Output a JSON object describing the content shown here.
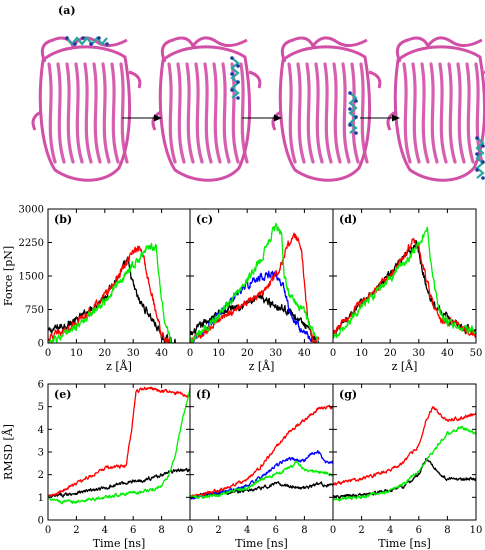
{
  "figure": {
    "panel_a_label": "(a)",
    "protein_color": "#d14fa6",
    "ligand_color": "#2aa6a0",
    "arrow_color": "#000000"
  },
  "chart_data": [
    {
      "id": "b",
      "panel_label": "(b)",
      "type": "line",
      "xlabel": "z [Å]",
      "ylabel": "Force [pN]",
      "xlim": [
        0,
        50
      ],
      "ylim": [
        0,
        3000
      ],
      "xticks": [
        "0",
        "10",
        "20",
        "30",
        "40"
      ],
      "xtick_values": [
        0,
        10,
        20,
        30,
        40
      ],
      "yticks": [
        "0",
        "750",
        "1500",
        "2250",
        "3000"
      ],
      "ytick_values": [
        0,
        750,
        1500,
        2250,
        3000
      ],
      "noise": 140,
      "series": [
        {
          "color": "#000000",
          "x": [
            0,
            5,
            10,
            15,
            20,
            25,
            28,
            30,
            32,
            35,
            38,
            40,
            42,
            45
          ],
          "y": [
            250,
            380,
            500,
            750,
            1050,
            1500,
            1850,
            1300,
            950,
            700,
            400,
            150,
            60,
            0
          ]
        },
        {
          "color": "#ff0000",
          "x": [
            0,
            5,
            10,
            15,
            20,
            25,
            30,
            33,
            35,
            38,
            40,
            42,
            44
          ],
          "y": [
            100,
            250,
            450,
            700,
            1050,
            1500,
            2050,
            2100,
            1500,
            700,
            200,
            50,
            0
          ]
        },
        {
          "color": "#00ee00",
          "x": [
            0,
            5,
            10,
            15,
            20,
            25,
            30,
            35,
            38,
            39,
            41,
            43,
            45
          ],
          "y": [
            0,
            150,
            350,
            650,
            950,
            1350,
            1750,
            2100,
            2200,
            1500,
            500,
            100,
            0
          ]
        }
      ]
    },
    {
      "id": "c",
      "panel_label": "(c)",
      "type": "line",
      "xlabel": "z [Å]",
      "ylabel": "",
      "xlim": [
        0,
        50
      ],
      "ylim": [
        0,
        3000
      ],
      "xticks": [
        "0",
        "10",
        "20",
        "30",
        "40"
      ],
      "xtick_values": [
        0,
        10,
        20,
        30,
        40
      ],
      "yticks": [],
      "ytick_values": [],
      "noise": 140,
      "series": [
        {
          "color": "#000000",
          "x": [
            0,
            5,
            10,
            15,
            20,
            25,
            30,
            35,
            40,
            43,
            45
          ],
          "y": [
            150,
            450,
            650,
            800,
            900,
            1000,
            850,
            700,
            400,
            150,
            0
          ]
        },
        {
          "color": "#0000ff",
          "x": [
            0,
            5,
            10,
            15,
            20,
            25,
            30,
            33,
            35,
            38,
            42,
            45
          ],
          "y": [
            0,
            250,
            600,
            1000,
            1300,
            1500,
            1550,
            1200,
            700,
            400,
            100,
            0
          ]
        },
        {
          "color": "#ff0000",
          "x": [
            0,
            5,
            10,
            15,
            20,
            25,
            30,
            35,
            37,
            39,
            41,
            43,
            45
          ],
          "y": [
            50,
            250,
            500,
            700,
            900,
            1100,
            1500,
            2300,
            2400,
            2100,
            600,
            100,
            0
          ]
        },
        {
          "color": "#00ee00",
          "x": [
            0,
            5,
            10,
            15,
            20,
            25,
            28,
            30,
            32,
            33,
            35,
            40,
            45
          ],
          "y": [
            50,
            300,
            600,
            1000,
            1400,
            1900,
            2350,
            2650,
            2400,
            1500,
            1050,
            700,
            0
          ]
        }
      ]
    },
    {
      "id": "d",
      "panel_label": "(d)",
      "type": "line",
      "xlabel": "z [Å]",
      "ylabel": "",
      "xlim": [
        0,
        50
      ],
      "ylim": [
        0,
        3000
      ],
      "xticks": [
        "0",
        "10",
        "20",
        "30",
        "40",
        "50"
      ],
      "xtick_values": [
        0,
        10,
        20,
        30,
        40,
        50
      ],
      "yticks": [],
      "ytick_values": [],
      "noise": 140,
      "series": [
        {
          "color": "#000000",
          "x": [
            0,
            5,
            10,
            15,
            20,
            25,
            29,
            31,
            33,
            35,
            40,
            45,
            50
          ],
          "y": [
            200,
            550,
            900,
            1200,
            1550,
            1900,
            2250,
            1700,
            1200,
            900,
            550,
            350,
            250
          ]
        },
        {
          "color": "#ff0000",
          "x": [
            0,
            5,
            10,
            15,
            20,
            25,
            28,
            30,
            32,
            35,
            38,
            40,
            42,
            45,
            48,
            50
          ],
          "y": [
            200,
            550,
            900,
            1200,
            1550,
            1950,
            2300,
            2150,
            1600,
            800,
            500,
            500,
            450,
            350,
            250,
            200
          ]
        },
        {
          "color": "#00ee00",
          "x": [
            0,
            5,
            10,
            15,
            20,
            25,
            30,
            33,
            35,
            37,
            40,
            45,
            50
          ],
          "y": [
            100,
            450,
            800,
            1100,
            1450,
            1800,
            2200,
            2500,
            1400,
            750,
            450,
            350,
            250
          ]
        }
      ]
    },
    {
      "id": "e",
      "panel_label": "(e)",
      "type": "line",
      "xlabel": "Time [ns]",
      "ylabel": "RMSD [Å]",
      "xlim": [
        0,
        10
      ],
      "ylim": [
        0,
        6
      ],
      "xticks": [
        "0",
        "2",
        "4",
        "6",
        "8"
      ],
      "xtick_values": [
        0,
        2,
        4,
        6,
        8
      ],
      "yticks": [
        "0",
        "1",
        "2",
        "3",
        "4",
        "5",
        "6"
      ],
      "ytick_values": [
        0,
        1,
        2,
        3,
        4,
        5,
        6
      ],
      "noise": 0.12,
      "series": [
        {
          "color": "#000000",
          "x": [
            0,
            2,
            4,
            5,
            6,
            7,
            8,
            9,
            10
          ],
          "y": [
            1.0,
            1.2,
            1.4,
            1.6,
            1.7,
            1.8,
            2.0,
            2.2,
            2.2
          ]
        },
        {
          "color": "#ff0000",
          "x": [
            0,
            2,
            4,
            5.5,
            5.9,
            6.2,
            7,
            8,
            9,
            10
          ],
          "y": [
            1.0,
            1.6,
            2.3,
            2.4,
            4.0,
            5.7,
            5.8,
            5.7,
            5.6,
            5.5
          ]
        },
        {
          "color": "#00ee00",
          "x": [
            0,
            1,
            2,
            4,
            6,
            7,
            8,
            8.5,
            9,
            9.5,
            10
          ],
          "y": [
            1.0,
            0.8,
            0.8,
            1.0,
            1.2,
            1.3,
            1.5,
            2.0,
            3.0,
            4.5,
            5.8
          ]
        }
      ]
    },
    {
      "id": "f",
      "panel_label": "(f)",
      "type": "line",
      "xlabel": "Time [ns]",
      "ylabel": "",
      "xlim": [
        0,
        10
      ],
      "ylim": [
        0,
        6
      ],
      "xticks": [
        "0",
        "2",
        "4",
        "6",
        "8"
      ],
      "xtick_values": [
        0,
        2,
        4,
        6,
        8
      ],
      "yticks": [],
      "ytick_values": [],
      "noise": 0.12,
      "series": [
        {
          "color": "#000000",
          "x": [
            0,
            2,
            4,
            5,
            6,
            7,
            8,
            9,
            10
          ],
          "y": [
            1.0,
            1.2,
            1.3,
            1.4,
            1.6,
            1.5,
            1.4,
            1.6,
            1.5
          ]
        },
        {
          "color": "#0000ff",
          "x": [
            0,
            2,
            4,
            5,
            6,
            7,
            8,
            8.5,
            9,
            9.5,
            10
          ],
          "y": [
            1.0,
            1.2,
            1.5,
            1.9,
            2.4,
            2.7,
            2.6,
            2.9,
            3.0,
            2.5,
            2.5
          ]
        },
        {
          "color": "#ff0000",
          "x": [
            0,
            2,
            4,
            5,
            6,
            7,
            8,
            9,
            10
          ],
          "y": [
            1.0,
            1.3,
            1.8,
            2.4,
            3.2,
            3.9,
            4.4,
            4.9,
            5.0
          ]
        },
        {
          "color": "#00ee00",
          "x": [
            0,
            2,
            4,
            5,
            6,
            7,
            7.5,
            8,
            9,
            10
          ],
          "y": [
            1.0,
            1.1,
            1.4,
            1.8,
            2.0,
            2.3,
            2.6,
            2.2,
            2.1,
            2.0
          ]
        }
      ]
    },
    {
      "id": "g",
      "panel_label": "(g)",
      "type": "line",
      "xlabel": "Time [ns]",
      "ylabel": "",
      "xlim": [
        0,
        10
      ],
      "ylim": [
        0,
        6
      ],
      "xticks": [
        "0",
        "2",
        "4",
        "6",
        "8",
        "10"
      ],
      "xtick_values": [
        0,
        2,
        4,
        6,
        8,
        10
      ],
      "yticks": [],
      "ytick_values": [],
      "noise": 0.12,
      "series": [
        {
          "color": "#000000",
          "x": [
            0,
            2,
            4,
            5,
            6,
            6.5,
            7,
            7.5,
            8,
            9,
            10
          ],
          "y": [
            1.0,
            1.1,
            1.3,
            1.5,
            2.0,
            2.7,
            2.4,
            2.0,
            1.8,
            1.8,
            1.8
          ]
        },
        {
          "color": "#ff0000",
          "x": [
            0,
            2,
            4,
            5,
            6,
            6.5,
            7,
            7.5,
            8,
            9,
            10
          ],
          "y": [
            1.6,
            1.8,
            2.2,
            2.6,
            3.3,
            4.4,
            5.0,
            4.6,
            4.4,
            4.5,
            4.7
          ]
        },
        {
          "color": "#00ee00",
          "x": [
            0,
            2,
            4,
            5,
            6,
            7,
            8,
            9,
            10
          ],
          "y": [
            0.9,
            1.0,
            1.3,
            1.6,
            2.2,
            3.0,
            3.8,
            4.1,
            3.8
          ]
        }
      ]
    }
  ]
}
